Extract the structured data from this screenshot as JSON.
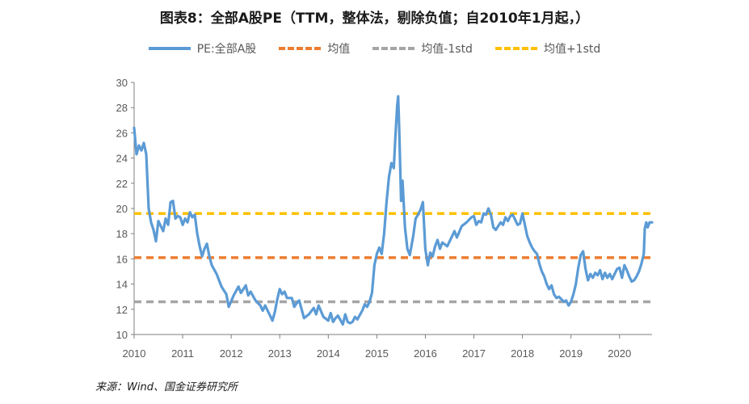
{
  "title": "图表8：全部A股PE（TTM，整体法，剔除负值；自2010年1月起，）",
  "source": "来源：Wind、国金证券研究所",
  "colors": {
    "pe": "#5B9BD5",
    "mean": "#ED7D31",
    "minus": "#A5A5A5",
    "plus": "#FFC000",
    "axis": "#7f7f7f"
  },
  "legend": [
    {
      "label": "PE:全部A股",
      "style": "solid",
      "color": "#5B9BD5"
    },
    {
      "label": "均值",
      "style": "dash",
      "color": "#ED7D31"
    },
    {
      "label": "均值-1std",
      "style": "dash",
      "color": "#A5A5A5"
    },
    {
      "label": "均值+1std",
      "style": "dash",
      "color": "#FFC000"
    }
  ],
  "chart_data": {
    "type": "line",
    "title": "图表8：全部A股PE（TTM，整体法，剔除负值；自2010年1月起，）",
    "xlabel": "",
    "ylabel": "",
    "xlim": [
      2010,
      2020.67
    ],
    "ylim": [
      10,
      30
    ],
    "yticks": [
      10,
      12,
      14,
      16,
      18,
      20,
      22,
      24,
      26,
      28,
      30
    ],
    "xticks": [
      "2010",
      "2011",
      "2012",
      "2013",
      "2014",
      "2015",
      "2016",
      "2017",
      "2018",
      "2019",
      "2020"
    ],
    "series": [
      {
        "name": "PE:全部A股",
        "points": [
          [
            2010.0,
            26.4
          ],
          [
            2010.05,
            24.3
          ],
          [
            2010.1,
            25.0
          ],
          [
            2010.15,
            24.6
          ],
          [
            2010.2,
            25.2
          ],
          [
            2010.25,
            24.3
          ],
          [
            2010.3,
            20.0
          ],
          [
            2010.35,
            18.9
          ],
          [
            2010.4,
            18.3
          ],
          [
            2010.45,
            17.4
          ],
          [
            2010.5,
            19.0
          ],
          [
            2010.55,
            18.6
          ],
          [
            2010.6,
            18.2
          ],
          [
            2010.65,
            19.2
          ],
          [
            2010.7,
            18.7
          ],
          [
            2010.75,
            20.5
          ],
          [
            2010.8,
            20.6
          ],
          [
            2010.85,
            19.2
          ],
          [
            2010.9,
            19.4
          ],
          [
            2010.95,
            19.3
          ],
          [
            2011.0,
            18.7
          ],
          [
            2011.05,
            19.2
          ],
          [
            2011.1,
            18.9
          ],
          [
            2011.15,
            19.7
          ],
          [
            2011.2,
            19.3
          ],
          [
            2011.25,
            19.5
          ],
          [
            2011.3,
            18.0
          ],
          [
            2011.35,
            17.0
          ],
          [
            2011.4,
            16.2
          ],
          [
            2011.45,
            16.8
          ],
          [
            2011.5,
            17.2
          ],
          [
            2011.55,
            16.2
          ],
          [
            2011.6,
            15.5
          ],
          [
            2011.7,
            14.8
          ],
          [
            2011.8,
            13.8
          ],
          [
            2011.9,
            13.2
          ],
          [
            2011.95,
            12.2
          ],
          [
            2012.05,
            13.1
          ],
          [
            2012.15,
            13.8
          ],
          [
            2012.2,
            13.3
          ],
          [
            2012.3,
            13.9
          ],
          [
            2012.35,
            13.1
          ],
          [
            2012.4,
            13.4
          ],
          [
            2012.5,
            12.7
          ],
          [
            2012.6,
            12.3
          ],
          [
            2012.65,
            11.9
          ],
          [
            2012.7,
            12.3
          ],
          [
            2012.8,
            11.5
          ],
          [
            2012.85,
            11.1
          ],
          [
            2012.9,
            11.8
          ],
          [
            2012.95,
            12.8
          ],
          [
            2013.0,
            13.6
          ],
          [
            2013.05,
            13.2
          ],
          [
            2013.1,
            13.4
          ],
          [
            2013.15,
            12.9
          ],
          [
            2013.25,
            12.9
          ],
          [
            2013.3,
            12.2
          ],
          [
            2013.35,
            12.5
          ],
          [
            2013.4,
            12.7
          ],
          [
            2013.5,
            11.3
          ],
          [
            2013.6,
            11.6
          ],
          [
            2013.7,
            12.1
          ],
          [
            2013.75,
            11.6
          ],
          [
            2013.8,
            12.3
          ],
          [
            2013.9,
            11.4
          ],
          [
            2014.0,
            11.1
          ],
          [
            2014.05,
            11.7
          ],
          [
            2014.1,
            11.0
          ],
          [
            2014.15,
            11.3
          ],
          [
            2014.2,
            11.5
          ],
          [
            2014.3,
            10.8
          ],
          [
            2014.35,
            11.6
          ],
          [
            2014.4,
            11.0
          ],
          [
            2014.45,
            10.9
          ],
          [
            2014.5,
            11.0
          ],
          [
            2014.55,
            11.4
          ],
          [
            2014.6,
            11.2
          ],
          [
            2014.7,
            11.9
          ],
          [
            2014.75,
            12.4
          ],
          [
            2014.8,
            12.2
          ],
          [
            2014.85,
            12.6
          ],
          [
            2014.9,
            13.3
          ],
          [
            2014.95,
            15.5
          ],
          [
            2015.0,
            16.4
          ],
          [
            2015.05,
            16.9
          ],
          [
            2015.1,
            16.4
          ],
          [
            2015.15,
            18.0
          ],
          [
            2015.2,
            20.5
          ],
          [
            2015.25,
            22.5
          ],
          [
            2015.3,
            23.6
          ],
          [
            2015.35,
            23.2
          ],
          [
            2015.38,
            25.5
          ],
          [
            2015.42,
            28.2
          ],
          [
            2015.44,
            28.9
          ],
          [
            2015.46,
            26.5
          ],
          [
            2015.5,
            20.6
          ],
          [
            2015.53,
            22.2
          ],
          [
            2015.58,
            18.5
          ],
          [
            2015.63,
            16.8
          ],
          [
            2015.68,
            16.3
          ],
          [
            2015.75,
            17.8
          ],
          [
            2015.8,
            19.2
          ],
          [
            2015.85,
            19.5
          ],
          [
            2015.9,
            19.9
          ],
          [
            2015.95,
            20.5
          ],
          [
            2016.0,
            16.8
          ],
          [
            2016.05,
            15.5
          ],
          [
            2016.1,
            16.5
          ],
          [
            2016.15,
            16.2
          ],
          [
            2016.2,
            17.0
          ],
          [
            2016.25,
            17.5
          ],
          [
            2016.3,
            16.8
          ],
          [
            2016.35,
            17.3
          ],
          [
            2016.45,
            17.0
          ],
          [
            2016.55,
            17.8
          ],
          [
            2016.6,
            18.2
          ],
          [
            2016.65,
            17.7
          ],
          [
            2016.75,
            18.6
          ],
          [
            2016.85,
            18.9
          ],
          [
            2016.95,
            19.3
          ],
          [
            2017.0,
            19.4
          ],
          [
            2017.05,
            18.7
          ],
          [
            2017.1,
            19.0
          ],
          [
            2017.15,
            18.9
          ],
          [
            2017.2,
            19.6
          ],
          [
            2017.25,
            19.5
          ],
          [
            2017.3,
            20.0
          ],
          [
            2017.35,
            19.5
          ],
          [
            2017.4,
            18.5
          ],
          [
            2017.45,
            18.3
          ],
          [
            2017.5,
            18.6
          ],
          [
            2017.55,
            18.9
          ],
          [
            2017.6,
            18.7
          ],
          [
            2017.65,
            19.3
          ],
          [
            2017.7,
            19.0
          ],
          [
            2017.75,
            19.4
          ],
          [
            2017.8,
            19.5
          ],
          [
            2017.85,
            19.1
          ],
          [
            2017.9,
            18.7
          ],
          [
            2017.95,
            18.8
          ],
          [
            2018.0,
            19.6
          ],
          [
            2018.05,
            18.7
          ],
          [
            2018.1,
            17.8
          ],
          [
            2018.15,
            17.3
          ],
          [
            2018.2,
            16.9
          ],
          [
            2018.25,
            16.6
          ],
          [
            2018.3,
            16.4
          ],
          [
            2018.35,
            15.6
          ],
          [
            2018.4,
            15.0
          ],
          [
            2018.45,
            14.6
          ],
          [
            2018.5,
            14.0
          ],
          [
            2018.55,
            13.6
          ],
          [
            2018.6,
            13.9
          ],
          [
            2018.65,
            13.2
          ],
          [
            2018.7,
            12.9
          ],
          [
            2018.75,
            13.0
          ],
          [
            2018.8,
            12.8
          ],
          [
            2018.85,
            12.6
          ],
          [
            2018.9,
            12.7
          ],
          [
            2018.95,
            12.3
          ],
          [
            2019.0,
            12.6
          ],
          [
            2019.05,
            13.2
          ],
          [
            2019.1,
            14.0
          ],
          [
            2019.15,
            15.3
          ],
          [
            2019.2,
            16.3
          ],
          [
            2019.25,
            16.6
          ],
          [
            2019.3,
            15.2
          ],
          [
            2019.35,
            14.3
          ],
          [
            2019.4,
            14.8
          ],
          [
            2019.45,
            14.5
          ],
          [
            2019.5,
            14.9
          ],
          [
            2019.55,
            14.7
          ],
          [
            2019.6,
            15.1
          ],
          [
            2019.65,
            14.4
          ],
          [
            2019.7,
            14.9
          ],
          [
            2019.75,
            14.5
          ],
          [
            2019.8,
            14.8
          ],
          [
            2019.85,
            14.4
          ],
          [
            2019.9,
            14.8
          ],
          [
            2019.95,
            15.2
          ],
          [
            2020.0,
            15.3
          ],
          [
            2020.05,
            14.5
          ],
          [
            2020.1,
            15.5
          ],
          [
            2020.15,
            15.1
          ],
          [
            2020.2,
            14.6
          ],
          [
            2020.25,
            14.2
          ],
          [
            2020.3,
            14.3
          ],
          [
            2020.35,
            14.6
          ],
          [
            2020.4,
            15.0
          ],
          [
            2020.45,
            15.6
          ],
          [
            2020.5,
            16.4
          ],
          [
            2020.52,
            18.4
          ],
          [
            2020.55,
            18.9
          ],
          [
            2020.58,
            18.5
          ],
          [
            2020.62,
            18.9
          ],
          [
            2020.67,
            18.9
          ]
        ]
      },
      {
        "name": "均值",
        "value": 16.1
      },
      {
        "name": "均值-1std",
        "value": 12.6
      },
      {
        "name": "均值+1std",
        "value": 19.6
      }
    ]
  }
}
